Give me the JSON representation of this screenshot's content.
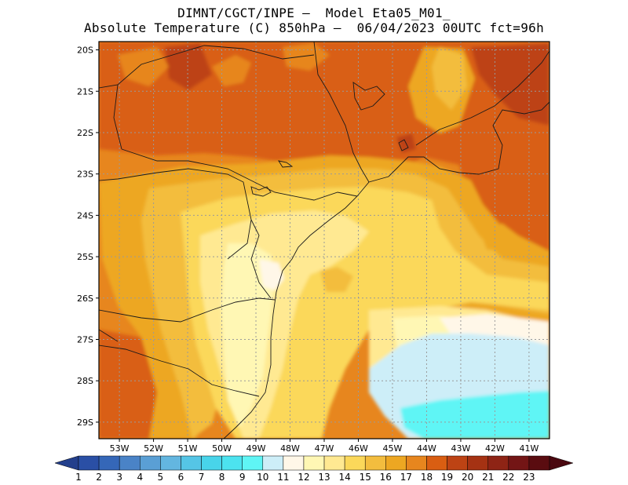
{
  "header": {
    "line1": "DIMNT/CGCT/INPE –  Model Eta05_M01_",
    "line2": "Absolute Temperature (C) 850hPa –  06/04/2023 00UTC fct=96h"
  },
  "map": {
    "lon_range": [
      -53.6,
      -40.4
    ],
    "lat_range": [
      -29.4,
      -19.8
    ],
    "lat_ticks": [
      "20S",
      "21S",
      "22S",
      "23S",
      "24S",
      "25S",
      "26S",
      "27S",
      "28S",
      "29S"
    ],
    "lon_ticks": [
      "53W",
      "52W",
      "51W",
      "50W",
      "49W",
      "48W",
      "47W",
      "46W",
      "45W",
      "44W",
      "43W",
      "42W",
      "41W"
    ],
    "gridlines": true
  },
  "colorbar": {
    "labels": [
      "1",
      "2",
      "3",
      "4",
      "5",
      "6",
      "7",
      "8",
      "9",
      "10",
      "11",
      "12",
      "13",
      "14",
      "15",
      "16",
      "17",
      "18",
      "19",
      "20",
      "21",
      "22",
      "23"
    ],
    "colors": [
      "#2a4fa5",
      "#3567b8",
      "#4a83c7",
      "#5a9fd5",
      "#63b6e0",
      "#55c5e6",
      "#48d4ea",
      "#4ce3ef",
      "#5ff5f5",
      "#cdeef8",
      "#fff7e8",
      "#fff7b4",
      "#ffe992",
      "#fbd85a",
      "#f3bd3e",
      "#eda722",
      "#e7861e",
      "#d95e12",
      "#bd4314",
      "#a53213",
      "#8e2415",
      "#731515",
      "#5a0c10"
    ],
    "arrow_left": "#233f8c",
    "arrow_right": "#4a0810"
  }
}
